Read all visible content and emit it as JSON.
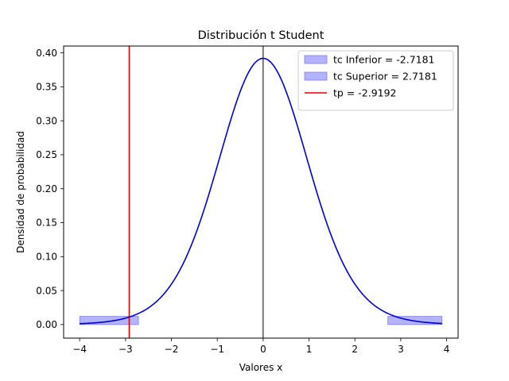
{
  "chart_data": {
    "type": "line",
    "title": "Distribución t Student",
    "xlabel": "Valores x",
    "ylabel": "Densidad de probabilidad",
    "xlim": [
      -4.35,
      4.25
    ],
    "ylim": [
      -0.02,
      0.41
    ],
    "x_ticks": [
      -4,
      -3,
      -2,
      -1,
      0,
      1,
      2,
      3,
      4
    ],
    "y_ticks": [
      0.0,
      0.05,
      0.1,
      0.15,
      0.2,
      0.25,
      0.3,
      0.35,
      0.4
    ],
    "x_tick_labels": [
      "−4",
      "−3",
      "−2",
      "−1",
      "0",
      "1",
      "2",
      "3",
      "4"
    ],
    "y_tick_labels": [
      "0.00",
      "0.05",
      "0.10",
      "0.15",
      "0.20",
      "0.25",
      "0.30",
      "0.35",
      "0.40"
    ],
    "curve": {
      "color": "#0000cc",
      "x_start": -4.0,
      "x_end": 3.9,
      "degrees_of_freedom": 14
    },
    "shaded_regions": [
      {
        "name": "tc Inferior = -2.7181",
        "x_from": -4.0,
        "x_to": -2.7181,
        "color": "#b3b3ff",
        "edge": "#8080ee"
      },
      {
        "name": "tc Superior = 2.7181",
        "x_from": 2.7181,
        "x_to": 3.9,
        "color": "#b3b3ff",
        "edge": "#8080ee"
      }
    ],
    "vertical_lines": [
      {
        "name": "tp = -2.9192",
        "x": -2.9192,
        "color": "#dd0000"
      },
      {
        "name": "",
        "x": 0,
        "color": "#000000"
      }
    ],
    "legend": {
      "position": "top-right",
      "entries": [
        {
          "label": "tc Inferior = -2.7181",
          "kind": "patch",
          "color": "#b3b3ff",
          "edge": "#8080ee"
        },
        {
          "label": "tc Superior = 2.7181",
          "kind": "patch",
          "color": "#b3b3ff",
          "edge": "#8080ee"
        },
        {
          "label": "tp = -2.9192",
          "kind": "line",
          "color": "#dd0000"
        }
      ]
    },
    "grid": false
  }
}
